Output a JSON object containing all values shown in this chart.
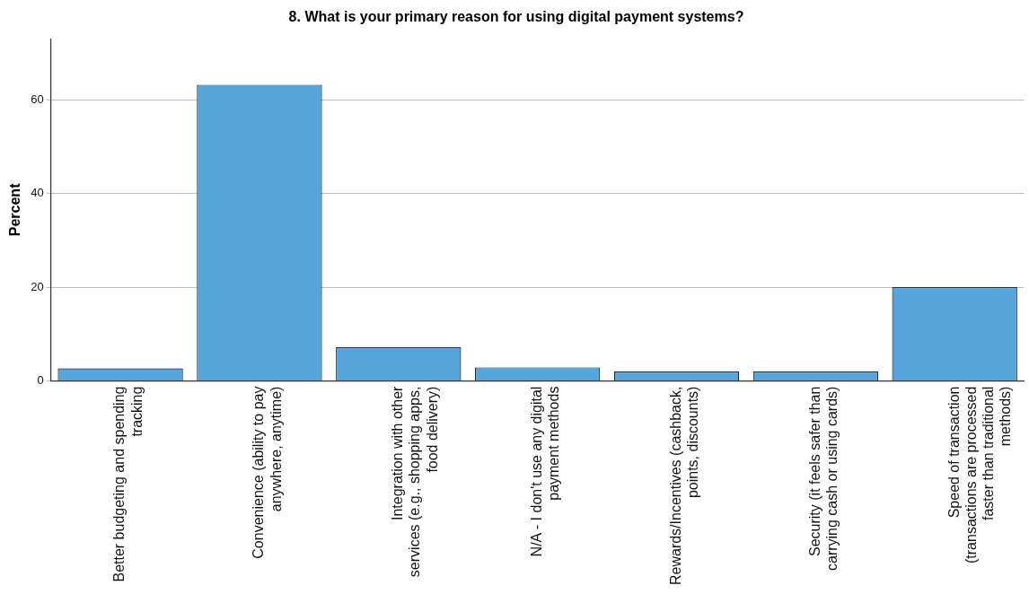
{
  "chart_data": {
    "type": "bar",
    "title": "8. What is your primary reason for using digital payment systems?",
    "ylabel": "Percent",
    "categories": [
      "Better budgeting and spending tracking",
      "Convenience (ability to pay anywhere, anytime)",
      "Integration with other services (e.g., shopping apps, food delivery)",
      "N/A - I don't use any digital payment methods",
      "Rewards/Incentives (cashback, points, discounts)",
      "Security (it feels safer than carrying cash or using cards)",
      "Speed of transaction (transactions are processed faster than traditional methods)"
    ],
    "values": [
      2.7,
      63.2,
      7.2,
      2.9,
      2.0,
      2.0,
      20.0
    ],
    "color": "#56a5dc",
    "ylim": [
      0,
      73
    ],
    "yticks": [
      0,
      20,
      40,
      60
    ],
    "grid": "y",
    "legend": false
  }
}
